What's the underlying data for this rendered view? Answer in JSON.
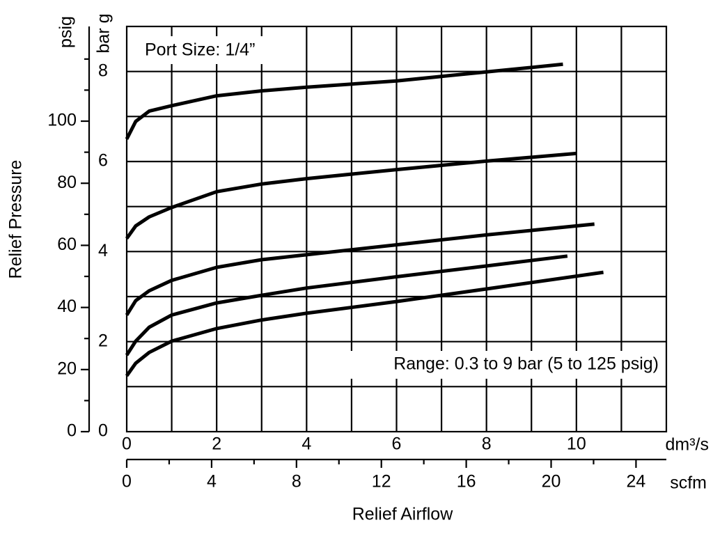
{
  "chart_data": {
    "type": "line",
    "xlabel": "Relief Airflow",
    "ylabel": "Relief Pressure",
    "x_unit": "dm³/s",
    "x2_unit": "scfm",
    "y_unit": "bar g",
    "y2_unit": "psig",
    "annotations": [
      "Port Size: 1/4”",
      "Range: 0.3 to 9 bar (5 to 125 psig)"
    ],
    "xlim": [
      0,
      12
    ],
    "xticks": [
      0,
      2,
      4,
      6,
      8,
      10
    ],
    "xgrid": [
      1,
      2,
      3,
      4,
      5,
      6,
      7,
      8,
      9,
      10,
      11
    ],
    "ylim": [
      0,
      9
    ],
    "yticks": [
      0,
      2,
      4,
      6,
      8
    ],
    "ygrid": [
      1,
      2,
      3,
      4,
      5,
      6,
      7,
      8
    ],
    "x2lim": [
      0,
      25.43
    ],
    "x2ticks": [
      0,
      4,
      8,
      12,
      16,
      20,
      24
    ],
    "x2minor": [
      2,
      6,
      10,
      14,
      18,
      22
    ],
    "y2lim": [
      0,
      130.5
    ],
    "y2ticks": [
      0,
      20,
      40,
      60,
      80,
      100
    ],
    "y2minor": [
      10,
      30,
      50,
      70,
      90,
      110,
      120
    ],
    "color": "#000000",
    "series": [
      {
        "x": [
          0,
          0.2,
          0.5,
          1,
          2,
          3,
          4,
          6,
          8,
          9.7
        ],
        "values": [
          6.5,
          6.89,
          7.12,
          7.24,
          7.46,
          7.57,
          7.65,
          7.79,
          7.99,
          8.16
        ]
      },
      {
        "x": [
          0,
          0.2,
          0.5,
          1,
          2,
          3,
          4,
          6,
          8,
          10
        ],
        "values": [
          4.29,
          4.57,
          4.77,
          4.98,
          5.33,
          5.5,
          5.62,
          5.82,
          6.01,
          6.18
        ]
      },
      {
        "x": [
          0,
          0.2,
          0.5,
          1,
          2,
          3,
          4,
          6,
          8,
          10.4
        ],
        "values": [
          2.59,
          2.91,
          3.13,
          3.36,
          3.65,
          3.82,
          3.93,
          4.15,
          4.37,
          4.61
        ]
      },
      {
        "x": [
          0,
          0.2,
          0.5,
          1,
          2,
          3,
          4,
          6,
          8,
          9.8
        ],
        "values": [
          1.7,
          2.01,
          2.32,
          2.59,
          2.86,
          3.03,
          3.19,
          3.44,
          3.68,
          3.9
        ]
      },
      {
        "x": [
          0,
          0.2,
          0.5,
          1,
          2,
          3,
          4,
          6,
          8,
          10.6
        ],
        "values": [
          1.24,
          1.52,
          1.76,
          2.01,
          2.29,
          2.48,
          2.63,
          2.89,
          3.17,
          3.54
        ]
      }
    ]
  }
}
